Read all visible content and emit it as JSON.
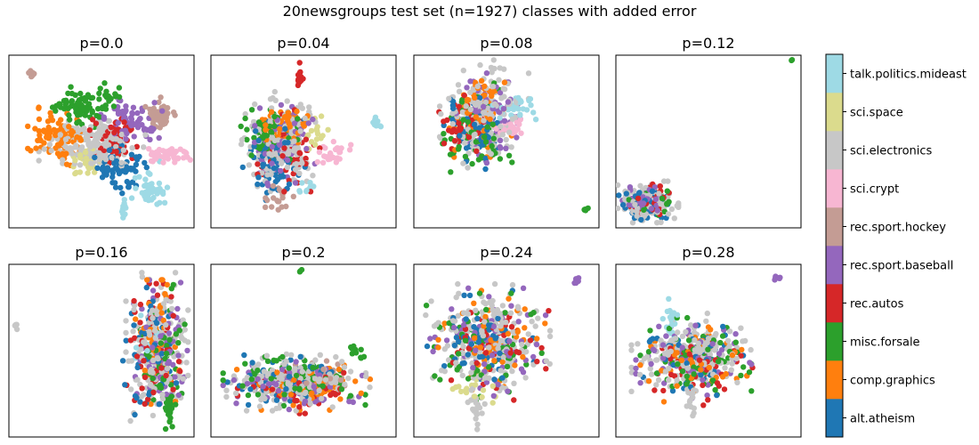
{
  "figure": {
    "title": "20newsgroups test set (n=1927) classes with added error"
  },
  "colors": {
    "alt.atheism": "#1f77b4",
    "comp.graphics": "#ff7f0e",
    "misc.forsale": "#2ca02c",
    "rec.autos": "#d62728",
    "rec.sport.baseball": "#9467bd",
    "rec.sport.hockey": "#c49c94",
    "sci.crypt": "#f7b6d2",
    "sci.electronics": "#c7c7c7",
    "sci.space": "#dbdb8d",
    "talk.politics.mideast": "#9edae5"
  },
  "chart_data": {
    "type": "scatter",
    "title": "20newsgroups test set (n=1927) classes with added error",
    "legend": "colorbar-right",
    "grid": false,
    "axes_ticks": false,
    "classes": [
      "alt.atheism",
      "comp.graphics",
      "misc.forsale",
      "rec.autos",
      "rec.sport.baseball",
      "rec.sport.hockey",
      "sci.crypt",
      "sci.electronics",
      "sci.space",
      "talk.politics.mideast"
    ],
    "panels": [
      {
        "title": "p=0.0",
        "clusters": [
          {
            "cls": "sci.electronics",
            "cx": 0.45,
            "cy": 0.52,
            "sx": 0.12,
            "sy": 0.08,
            "n": 160
          },
          {
            "cls": "comp.graphics",
            "cx": 0.27,
            "cy": 0.47,
            "sx": 0.07,
            "sy": 0.07,
            "n": 90
          },
          {
            "cls": "misc.forsale",
            "cx": 0.38,
            "cy": 0.3,
            "sx": 0.06,
            "sy": 0.05,
            "n": 70
          },
          {
            "cls": "misc.forsale",
            "cx": 0.55,
            "cy": 0.24,
            "sx": 0.03,
            "sy": 0.04,
            "n": 20
          },
          {
            "cls": "rec.autos",
            "cx": 0.55,
            "cy": 0.48,
            "sx": 0.06,
            "sy": 0.06,
            "n": 60
          },
          {
            "cls": "rec.sport.baseball",
            "cx": 0.66,
            "cy": 0.38,
            "sx": 0.07,
            "sy": 0.05,
            "n": 70
          },
          {
            "cls": "rec.sport.hockey",
            "cx": 0.82,
            "cy": 0.34,
            "sx": 0.04,
            "sy": 0.04,
            "n": 50
          },
          {
            "cls": "sci.crypt",
            "cx": 0.86,
            "cy": 0.58,
            "sx": 0.05,
            "sy": 0.02,
            "n": 50
          },
          {
            "cls": "alt.atheism",
            "cx": 0.6,
            "cy": 0.66,
            "sx": 0.06,
            "sy": 0.07,
            "n": 60
          },
          {
            "cls": "sci.space",
            "cx": 0.42,
            "cy": 0.62,
            "sx": 0.03,
            "sy": 0.04,
            "n": 30
          },
          {
            "cls": "talk.politics.mideast",
            "cx": 0.76,
            "cy": 0.76,
            "sx": 0.04,
            "sy": 0.06,
            "n": 40
          },
          {
            "cls": "talk.politics.mideast",
            "cx": 0.62,
            "cy": 0.89,
            "sx": 0.008,
            "sy": 0.035,
            "n": 14
          },
          {
            "cls": "rec.sport.hockey",
            "cx": 0.12,
            "cy": 0.1,
            "sx": 0.015,
            "sy": 0.015,
            "n": 8
          }
        ]
      },
      {
        "title": "p=0.04",
        "clusters": [
          {
            "cls": "sci.electronics",
            "cx": 0.38,
            "cy": 0.5,
            "sx": 0.09,
            "sy": 0.12,
            "n": 180
          },
          {
            "cls": "rec.sport.baseball",
            "cx": 0.38,
            "cy": 0.52,
            "sx": 0.08,
            "sy": 0.11,
            "n": 90
          },
          {
            "cls": "alt.atheism",
            "cx": 0.34,
            "cy": 0.6,
            "sx": 0.07,
            "sy": 0.1,
            "n": 80
          },
          {
            "cls": "comp.graphics",
            "cx": 0.38,
            "cy": 0.42,
            "sx": 0.06,
            "sy": 0.06,
            "n": 60
          },
          {
            "cls": "misc.forsale",
            "cx": 0.3,
            "cy": 0.46,
            "sx": 0.07,
            "sy": 0.06,
            "n": 80
          },
          {
            "cls": "rec.autos",
            "cx": 0.42,
            "cy": 0.55,
            "sx": 0.07,
            "sy": 0.1,
            "n": 50
          },
          {
            "cls": "sci.crypt",
            "cx": 0.66,
            "cy": 0.57,
            "sx": 0.04,
            "sy": 0.03,
            "n": 30
          },
          {
            "cls": "sci.space",
            "cx": 0.55,
            "cy": 0.45,
            "sx": 0.04,
            "sy": 0.05,
            "n": 20
          },
          {
            "cls": "rec.sport.hockey",
            "cx": 0.35,
            "cy": 0.8,
            "sx": 0.04,
            "sy": 0.06,
            "n": 20
          },
          {
            "cls": "talk.politics.mideast",
            "cx": 0.9,
            "cy": 0.39,
            "sx": 0.015,
            "sy": 0.015,
            "n": 12
          },
          {
            "cls": "talk.politics.mideast",
            "cx": 0.52,
            "cy": 0.77,
            "sx": 0.02,
            "sy": 0.02,
            "n": 10
          },
          {
            "cls": "rec.autos",
            "cx": 0.48,
            "cy": 0.13,
            "sx": 0.01,
            "sy": 0.04,
            "n": 14
          }
        ]
      },
      {
        "title": "p=0.08",
        "clusters": [
          {
            "cls": "sci.electronics",
            "cx": 0.38,
            "cy": 0.34,
            "sx": 0.1,
            "sy": 0.13,
            "n": 170
          },
          {
            "cls": "comp.graphics",
            "cx": 0.36,
            "cy": 0.35,
            "sx": 0.07,
            "sy": 0.1,
            "n": 70
          },
          {
            "cls": "rec.sport.baseball",
            "cx": 0.42,
            "cy": 0.36,
            "sx": 0.08,
            "sy": 0.11,
            "n": 80
          },
          {
            "cls": "alt.atheism",
            "cx": 0.33,
            "cy": 0.42,
            "sx": 0.07,
            "sy": 0.1,
            "n": 60
          },
          {
            "cls": "misc.forsale",
            "cx": 0.34,
            "cy": 0.45,
            "sx": 0.08,
            "sy": 0.12,
            "n": 70
          },
          {
            "cls": "rec.autos",
            "cx": 0.28,
            "cy": 0.42,
            "sx": 0.06,
            "sy": 0.08,
            "n": 50
          },
          {
            "cls": "talk.politics.mideast",
            "cx": 0.55,
            "cy": 0.3,
            "sx": 0.06,
            "sy": 0.03,
            "n": 30
          },
          {
            "cls": "sci.crypt",
            "cx": 0.52,
            "cy": 0.42,
            "sx": 0.04,
            "sy": 0.03,
            "n": 25
          },
          {
            "cls": "misc.forsale",
            "cx": 0.93,
            "cy": 0.9,
            "sx": 0.008,
            "sy": 0.008,
            "n": 5
          }
        ]
      },
      {
        "title": "p=0.12",
        "clusters": [
          {
            "cls": "sci.electronics",
            "cx": 0.17,
            "cy": 0.85,
            "sx": 0.07,
            "sy": 0.05,
            "n": 110
          },
          {
            "cls": "rec.sport.baseball",
            "cx": 0.16,
            "cy": 0.86,
            "sx": 0.06,
            "sy": 0.04,
            "n": 60
          },
          {
            "cls": "alt.atheism",
            "cx": 0.16,
            "cy": 0.86,
            "sx": 0.06,
            "sy": 0.04,
            "n": 50
          },
          {
            "cls": "misc.forsale",
            "cx": 0.18,
            "cy": 0.84,
            "sx": 0.06,
            "sy": 0.04,
            "n": 40
          },
          {
            "cls": "rec.autos",
            "cx": 0.2,
            "cy": 0.84,
            "sx": 0.05,
            "sy": 0.04,
            "n": 40
          },
          {
            "cls": "misc.forsale",
            "cx": 0.95,
            "cy": 0.03,
            "sx": 0.004,
            "sy": 0.004,
            "n": 2
          }
        ]
      },
      {
        "title": "p=0.16",
        "clusters": [
          {
            "cls": "sci.electronics",
            "cx": 0.8,
            "cy": 0.48,
            "sx": 0.07,
            "sy": 0.18,
            "n": 180
          },
          {
            "cls": "rec.sport.baseball",
            "cx": 0.82,
            "cy": 0.5,
            "sx": 0.06,
            "sy": 0.17,
            "n": 80
          },
          {
            "cls": "rec.autos",
            "cx": 0.78,
            "cy": 0.52,
            "sx": 0.06,
            "sy": 0.17,
            "n": 70
          },
          {
            "cls": "misc.forsale",
            "cx": 0.83,
            "cy": 0.55,
            "sx": 0.05,
            "sy": 0.18,
            "n": 70
          },
          {
            "cls": "comp.graphics",
            "cx": 0.8,
            "cy": 0.45,
            "sx": 0.05,
            "sy": 0.15,
            "n": 50
          },
          {
            "cls": "alt.atheism",
            "cx": 0.76,
            "cy": 0.5,
            "sx": 0.06,
            "sy": 0.16,
            "n": 50
          },
          {
            "cls": "talk.politics.mideast",
            "cx": 0.78,
            "cy": 0.44,
            "sx": 0.04,
            "sy": 0.06,
            "n": 20
          },
          {
            "cls": "misc.forsale",
            "cx": 0.87,
            "cy": 0.85,
            "sx": 0.01,
            "sy": 0.06,
            "n": 20
          },
          {
            "cls": "sci.electronics",
            "cx": 0.04,
            "cy": 0.36,
            "sx": 0.005,
            "sy": 0.01,
            "n": 4
          }
        ]
      },
      {
        "title": "p=0.2",
        "clusters": [
          {
            "cls": "sci.electronics",
            "cx": 0.45,
            "cy": 0.68,
            "sx": 0.17,
            "sy": 0.07,
            "n": 200
          },
          {
            "cls": "rec.sport.baseball",
            "cx": 0.45,
            "cy": 0.7,
            "sx": 0.16,
            "sy": 0.06,
            "n": 80
          },
          {
            "cls": "misc.forsale",
            "cx": 0.45,
            "cy": 0.68,
            "sx": 0.16,
            "sy": 0.06,
            "n": 80
          },
          {
            "cls": "comp.graphics",
            "cx": 0.5,
            "cy": 0.7,
            "sx": 0.15,
            "sy": 0.06,
            "n": 60
          },
          {
            "cls": "alt.atheism",
            "cx": 0.4,
            "cy": 0.67,
            "sx": 0.14,
            "sy": 0.06,
            "n": 60
          },
          {
            "cls": "rec.autos",
            "cx": 0.48,
            "cy": 0.72,
            "sx": 0.14,
            "sy": 0.06,
            "n": 50
          },
          {
            "cls": "rec.sport.hockey",
            "cx": 0.55,
            "cy": 0.65,
            "sx": 0.1,
            "sy": 0.05,
            "n": 30
          },
          {
            "cls": "misc.forsale",
            "cx": 0.8,
            "cy": 0.5,
            "sx": 0.02,
            "sy": 0.02,
            "n": 10
          },
          {
            "cls": "misc.forsale",
            "cx": 0.48,
            "cy": 0.04,
            "sx": 0.005,
            "sy": 0.005,
            "n": 3
          }
        ]
      },
      {
        "title": "p=0.24",
        "clusters": [
          {
            "cls": "sci.electronics",
            "cx": 0.4,
            "cy": 0.45,
            "sx": 0.14,
            "sy": 0.14,
            "n": 190
          },
          {
            "cls": "rec.sport.baseball",
            "cx": 0.4,
            "cy": 0.45,
            "sx": 0.13,
            "sy": 0.13,
            "n": 80
          },
          {
            "cls": "misc.forsale",
            "cx": 0.38,
            "cy": 0.48,
            "sx": 0.13,
            "sy": 0.13,
            "n": 70
          },
          {
            "cls": "comp.graphics",
            "cx": 0.42,
            "cy": 0.44,
            "sx": 0.12,
            "sy": 0.12,
            "n": 60
          },
          {
            "cls": "alt.atheism",
            "cx": 0.36,
            "cy": 0.44,
            "sx": 0.12,
            "sy": 0.12,
            "n": 60
          },
          {
            "cls": "rec.autos",
            "cx": 0.44,
            "cy": 0.5,
            "sx": 0.12,
            "sy": 0.12,
            "n": 50
          },
          {
            "cls": "sci.space",
            "cx": 0.33,
            "cy": 0.7,
            "sx": 0.05,
            "sy": 0.05,
            "n": 20
          },
          {
            "cls": "sci.electronics",
            "cx": 0.34,
            "cy": 0.84,
            "sx": 0.02,
            "sy": 0.05,
            "n": 20
          },
          {
            "cls": "rec.sport.baseball",
            "cx": 0.88,
            "cy": 0.09,
            "sx": 0.01,
            "sy": 0.01,
            "n": 6
          }
        ]
      },
      {
        "title": "p=0.28",
        "clusters": [
          {
            "cls": "sci.electronics",
            "cx": 0.42,
            "cy": 0.52,
            "sx": 0.14,
            "sy": 0.1,
            "n": 180
          },
          {
            "cls": "rec.sport.baseball",
            "cx": 0.42,
            "cy": 0.55,
            "sx": 0.13,
            "sy": 0.1,
            "n": 70
          },
          {
            "cls": "misc.forsale",
            "cx": 0.42,
            "cy": 0.55,
            "sx": 0.13,
            "sy": 0.1,
            "n": 70
          },
          {
            "cls": "comp.graphics",
            "cx": 0.42,
            "cy": 0.58,
            "sx": 0.12,
            "sy": 0.09,
            "n": 60
          },
          {
            "cls": "alt.atheism",
            "cx": 0.4,
            "cy": 0.55,
            "sx": 0.12,
            "sy": 0.09,
            "n": 50
          },
          {
            "cls": "rec.autos",
            "cx": 0.45,
            "cy": 0.6,
            "sx": 0.12,
            "sy": 0.09,
            "n": 50
          },
          {
            "cls": "talk.politics.mideast",
            "cx": 0.3,
            "cy": 0.32,
            "sx": 0.02,
            "sy": 0.05,
            "n": 20
          },
          {
            "cls": "sci.electronics",
            "cx": 0.4,
            "cy": 0.8,
            "sx": 0.015,
            "sy": 0.05,
            "n": 15
          },
          {
            "cls": "rec.sport.baseball",
            "cx": 0.87,
            "cy": 0.08,
            "sx": 0.01,
            "sy": 0.01,
            "n": 6
          }
        ]
      }
    ]
  }
}
